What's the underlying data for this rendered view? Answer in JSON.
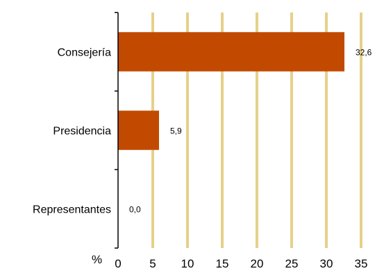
{
  "chart_data": {
    "type": "bar",
    "orientation": "horizontal",
    "categories": [
      "Consejería",
      "Presidencia",
      "Representantes"
    ],
    "values": [
      32.6,
      5.9,
      0.0
    ],
    "value_labels": [
      "32,6",
      "5,9",
      "0,0"
    ],
    "x_ticks": [
      0,
      5,
      10,
      15,
      20,
      25,
      30,
      35
    ],
    "x_tick_labels": [
      "0",
      "5",
      "10",
      "15",
      "20",
      "25",
      "30",
      "35"
    ],
    "xlim": [
      0,
      35
    ],
    "x_unit_label": "%",
    "grid": "vertical",
    "legend": "none",
    "colors": {
      "bar": "#c24a00",
      "grid": "#e6d08a",
      "axis": "#000000"
    }
  }
}
